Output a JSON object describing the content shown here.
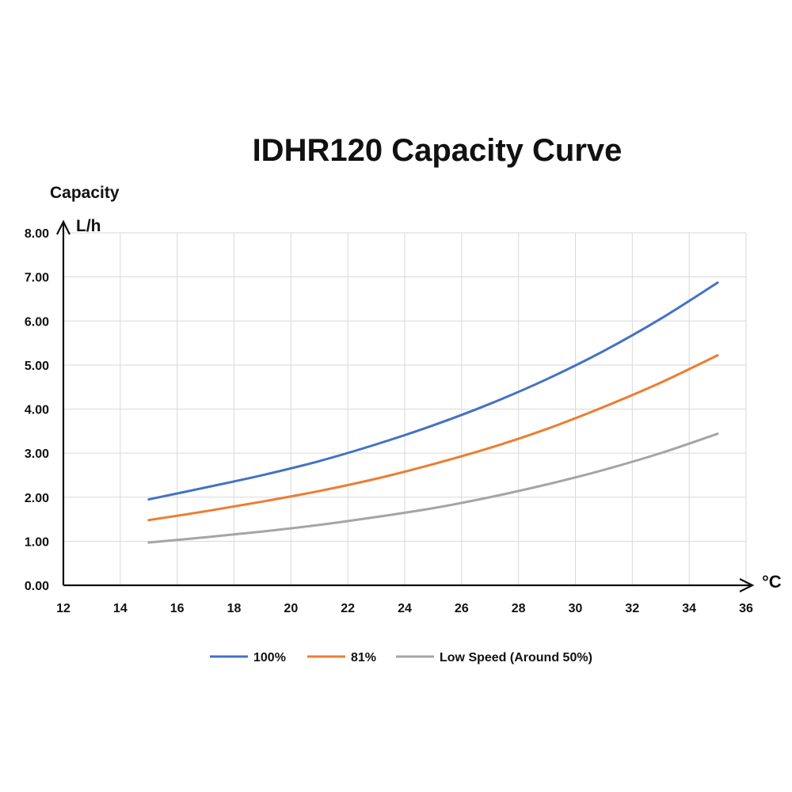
{
  "chart_data": {
    "type": "line",
    "title": "IDHR120  Capacity Curve",
    "ylabel": "Capacity",
    "yunit": "L/h",
    "xunit": "°C",
    "xlim": [
      12,
      36
    ],
    "ylim": [
      0,
      8
    ],
    "x_ticks": [
      12,
      14,
      16,
      18,
      20,
      22,
      24,
      26,
      28,
      30,
      32,
      34,
      36
    ],
    "y_ticks": [
      "0.00",
      "1.00",
      "2.00",
      "3.00",
      "4.00",
      "5.00",
      "6.00",
      "7.00",
      "8.00"
    ],
    "grid": true,
    "legend_position": "bottom",
    "x": [
      15,
      17,
      19,
      21,
      23,
      25,
      27,
      29,
      31,
      33,
      35
    ],
    "series": [
      {
        "name": "100%",
        "color": "#4472c4",
        "values": [
          1.95,
          2.22,
          2.5,
          2.82,
          3.2,
          3.63,
          4.12,
          4.68,
          5.32,
          6.05,
          6.87
        ]
      },
      {
        "name": "81%",
        "color": "#ed7d31",
        "values": [
          1.48,
          1.68,
          1.9,
          2.14,
          2.42,
          2.75,
          3.12,
          3.55,
          4.05,
          4.6,
          5.22
        ]
      },
      {
        "name": "Low Speed (Around 50%)",
        "color": "#a5a5a5",
        "values": [
          0.97,
          1.09,
          1.22,
          1.37,
          1.55,
          1.75,
          2.0,
          2.29,
          2.62,
          3.0,
          3.44
        ]
      }
    ]
  }
}
